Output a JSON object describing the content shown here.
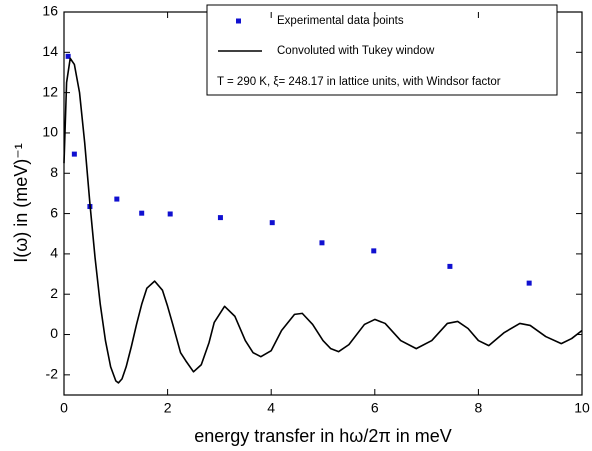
{
  "chart_data": {
    "type": "scatter",
    "xlabel": "energy transfer in hω/2π in meV",
    "ylabel": "I(ω) in (meV)⁻¹",
    "annotation": "T = 290 K, ξ= 248.17 in lattice units, with Windsor factor",
    "xlim": [
      0,
      10
    ],
    "xticks": [
      0,
      2,
      4,
      6,
      8,
      10
    ],
    "ylim": [
      -3,
      16
    ],
    "yticks": [
      -2,
      0,
      2,
      4,
      6,
      8,
      10,
      12,
      14,
      16
    ],
    "series": [
      {
        "name": "Experimental data points",
        "type": "scatter",
        "color": "#1010d0",
        "x": [
          0.08,
          0.2,
          0.5,
          1.02,
          1.5,
          2.05,
          3.02,
          4.02,
          4.98,
          5.98,
          7.45,
          8.98
        ],
        "values": [
          13.8,
          8.95,
          6.35,
          6.72,
          6.02,
          5.98,
          5.8,
          5.55,
          4.55,
          4.15,
          3.38,
          2.55
        ]
      },
      {
        "name": "Convoluted with Tukey window",
        "type": "line",
        "color": "#000000",
        "x": [
          0,
          0.05,
          0.12,
          0.2,
          0.3,
          0.4,
          0.5,
          0.6,
          0.7,
          0.8,
          0.9,
          1.0,
          1.05,
          1.12,
          1.2,
          1.3,
          1.4,
          1.5,
          1.6,
          1.75,
          1.9,
          2.0,
          2.1,
          2.25,
          2.35,
          2.5,
          2.65,
          2.8,
          2.9,
          3.1,
          3.3,
          3.5,
          3.65,
          3.8,
          4.0,
          4.2,
          4.45,
          4.6,
          4.8,
          5.0,
          5.15,
          5.3,
          5.5,
          5.8,
          6.0,
          6.2,
          6.5,
          6.8,
          7.1,
          7.4,
          7.6,
          7.8,
          8.0,
          8.2,
          8.5,
          8.8,
          9.0,
          9.3,
          9.6,
          9.8,
          10.0
        ],
        "values": [
          8.5,
          12.5,
          13.7,
          13.4,
          12.0,
          9.5,
          6.5,
          3.8,
          1.5,
          -0.3,
          -1.6,
          -2.3,
          -2.4,
          -2.2,
          -1.6,
          -0.6,
          0.5,
          1.5,
          2.3,
          2.65,
          2.2,
          1.4,
          0.5,
          -0.9,
          -1.3,
          -1.85,
          -1.5,
          -0.4,
          0.6,
          1.4,
          0.9,
          -0.3,
          -0.9,
          -1.1,
          -0.8,
          0.2,
          1.0,
          1.05,
          0.5,
          -0.3,
          -0.7,
          -0.85,
          -0.5,
          0.5,
          0.75,
          0.55,
          -0.3,
          -0.7,
          -0.3,
          0.55,
          0.65,
          0.3,
          -0.3,
          -0.55,
          0.1,
          0.55,
          0.45,
          -0.1,
          -0.45,
          -0.2,
          0.2
        ]
      }
    ]
  }
}
